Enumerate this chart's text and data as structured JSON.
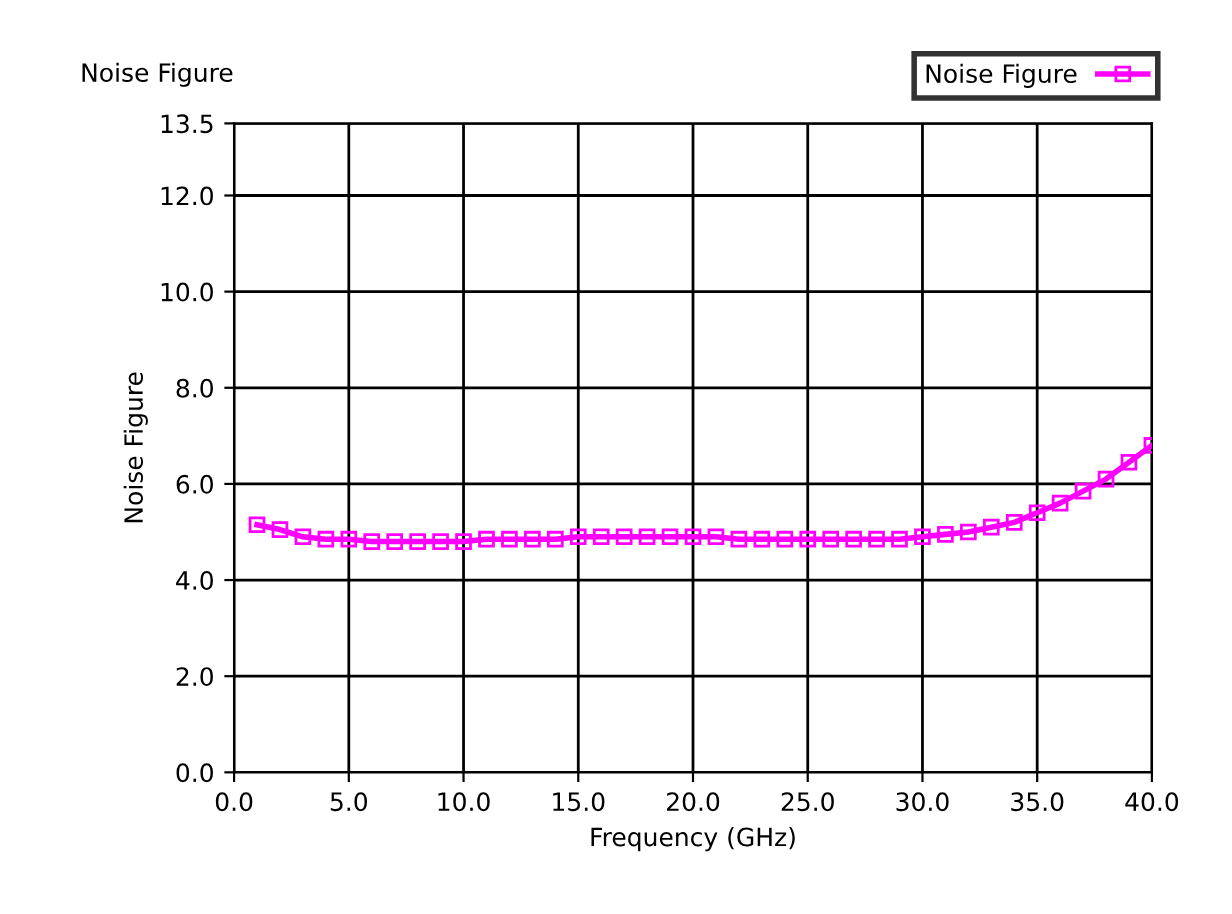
{
  "chart_data": {
    "type": "line",
    "title": "Noise Figure",
    "xlabel": "Frequency (GHz)",
    "ylabel": "Noise Figure",
    "x": [
      1,
      2,
      3,
      4,
      5,
      6,
      7,
      8,
      9,
      10,
      11,
      12,
      13,
      14,
      15,
      16,
      17,
      18,
      19,
      20,
      21,
      22,
      23,
      24,
      25,
      26,
      27,
      28,
      29,
      30,
      31,
      32,
      33,
      34,
      35,
      36,
      37,
      38,
      39,
      40
    ],
    "series": [
      {
        "name": "Noise Figure",
        "color": "#ff00ff",
        "values": [
          5.15,
          5.05,
          4.9,
          4.85,
          4.85,
          4.8,
          4.8,
          4.8,
          4.8,
          4.8,
          4.85,
          4.85,
          4.85,
          4.85,
          4.9,
          4.9,
          4.9,
          4.9,
          4.9,
          4.9,
          4.9,
          4.85,
          4.85,
          4.85,
          4.85,
          4.85,
          4.85,
          4.85,
          4.85,
          4.9,
          4.95,
          5.0,
          5.1,
          5.2,
          5.4,
          5.6,
          5.85,
          6.1,
          6.45,
          6.8
        ]
      }
    ],
    "xlim": [
      0,
      40
    ],
    "xticks": [
      {
        "value": 0,
        "label": "0.0"
      },
      {
        "value": 5,
        "label": "5.0"
      },
      {
        "value": 10,
        "label": "10.0"
      },
      {
        "value": 15,
        "label": "15.0"
      },
      {
        "value": 20,
        "label": "20.0"
      },
      {
        "value": 25,
        "label": "25.0"
      },
      {
        "value": 30,
        "label": "30.0"
      },
      {
        "value": 35,
        "label": "35.0"
      },
      {
        "value": 40,
        "label": "40.0"
      }
    ],
    "ylim": [
      0,
      13.5
    ],
    "yticks": [
      {
        "value": 0,
        "label": "0.0"
      },
      {
        "value": 2,
        "label": "2.0"
      },
      {
        "value": 4,
        "label": "4.0"
      },
      {
        "value": 6,
        "label": "6.0"
      },
      {
        "value": 8,
        "label": "8.0"
      },
      {
        "value": 10,
        "label": "10.0"
      },
      {
        "value": 12,
        "label": "12.0"
      },
      13.5
    ],
    "grid": true,
    "legend": "top right",
    "marker": "square",
    "line_style": "solid"
  }
}
